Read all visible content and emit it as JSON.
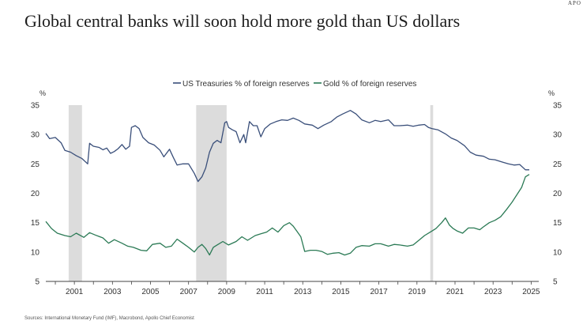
{
  "header": {
    "title": "Global central banks will soon hold more gold than US dollars",
    "brand": "APO"
  },
  "footer": {
    "source": "Sources: International Monetary Fund (IMF), Macrobond, Apollo Chief Economist"
  },
  "colors": {
    "treasuries": "#3a4f7a",
    "gold": "#2b7a55",
    "shading": "#dcdcdc",
    "axis": "#444444"
  },
  "chart_data": {
    "type": "line",
    "title": "Global central banks will soon hold more gold than US dollars",
    "left_axis_label": "%",
    "right_axis_label": "%",
    "ylim": [
      5,
      35
    ],
    "y_ticks": [
      "35",
      "30",
      "25",
      "20",
      "15",
      "10",
      "5"
    ],
    "x_range": [
      2000.0,
      2025.9
    ],
    "x_ticks": [
      "2001",
      "2003",
      "2005",
      "2007",
      "2009",
      "2011",
      "2013",
      "2015",
      "2017",
      "2019",
      "2021",
      "2023",
      "2025"
    ],
    "legend": [
      "US Treasuries % of foreign reserves",
      "Gold % of foreign reserves"
    ],
    "legend_position": "top-center",
    "recession_shading": [
      [
        2001.2,
        2001.9
      ],
      [
        2007.9,
        2009.5
      ],
      [
        2020.2,
        2020.35
      ]
    ],
    "series": [
      {
        "name": "US Treasuries % of foreign reserves",
        "x": [
          2000.0,
          2000.2,
          2000.5,
          2000.8,
          2001.0,
          2001.3,
          2001.6,
          2001.9,
          2002.2,
          2002.3,
          2002.5,
          2002.8,
          2003.0,
          2003.2,
          2003.4,
          2003.6,
          2003.8,
          2004.0,
          2004.2,
          2004.4,
          2004.5,
          2004.7,
          2004.9,
          2005.1,
          2005.4,
          2005.7,
          2006.0,
          2006.2,
          2006.5,
          2006.7,
          2006.9,
          2007.2,
          2007.5,
          2007.8,
          2008.0,
          2008.2,
          2008.4,
          2008.6,
          2008.8,
          2009.0,
          2009.2,
          2009.4,
          2009.5,
          2009.6,
          2009.8,
          2010.0,
          2010.2,
          2010.4,
          2010.5,
          2010.7,
          2010.9,
          2011.1,
          2011.3,
          2011.5,
          2011.8,
          2012.1,
          2012.4,
          2012.7,
          2013.0,
          2013.3,
          2013.6,
          2014.0,
          2014.3,
          2014.6,
          2015.0,
          2015.3,
          2015.6,
          2016.0,
          2016.3,
          2016.6,
          2017.0,
          2017.3,
          2017.6,
          2018.0,
          2018.3,
          2018.6,
          2019.0,
          2019.3,
          2019.6,
          2019.9,
          2020.1,
          2020.3,
          2020.6,
          2021.0,
          2021.3,
          2021.6,
          2022.0,
          2022.3,
          2022.6,
          2023.0,
          2023.3,
          2023.6,
          2024.0,
          2024.3,
          2024.6,
          2024.9,
          2025.2,
          2025.4
        ],
        "values": [
          30.2,
          29.3,
          29.5,
          28.6,
          27.3,
          27.0,
          26.4,
          25.9,
          25.0,
          28.5,
          28.0,
          27.8,
          27.4,
          27.7,
          26.8,
          27.1,
          27.6,
          28.3,
          27.5,
          28.0,
          31.2,
          31.5,
          31.0,
          29.5,
          28.6,
          28.2,
          27.3,
          26.2,
          27.5,
          26.1,
          24.8,
          25.0,
          25.0,
          23.4,
          22.0,
          22.8,
          24.3,
          27.0,
          28.5,
          29.0,
          28.6,
          32.0,
          32.2,
          31.2,
          30.8,
          30.5,
          28.6,
          30.0,
          28.6,
          32.2,
          31.5,
          31.5,
          29.6,
          31.0,
          31.8,
          32.2,
          32.5,
          32.4,
          32.8,
          32.4,
          31.8,
          31.6,
          31.0,
          31.6,
          32.2,
          33.0,
          33.5,
          34.1,
          33.5,
          32.5,
          32.0,
          32.4,
          32.2,
          32.5,
          31.5,
          31.5,
          31.6,
          31.4,
          31.6,
          31.7,
          31.2,
          31.0,
          30.8,
          30.1,
          29.4,
          29.0,
          28.1,
          27.0,
          26.5,
          26.3,
          25.8,
          25.7,
          25.3,
          25.0,
          24.8,
          24.9,
          24.0,
          24.0
        ]
      },
      {
        "name": "Gold % of foreign reserves",
        "x": [
          2000.0,
          2000.3,
          2000.6,
          2001.0,
          2001.3,
          2001.6,
          2002.0,
          2002.3,
          2002.6,
          2003.0,
          2003.3,
          2003.6,
          2004.0,
          2004.3,
          2004.6,
          2005.0,
          2005.3,
          2005.6,
          2006.0,
          2006.3,
          2006.6,
          2006.9,
          2007.2,
          2007.5,
          2007.8,
          2008.0,
          2008.2,
          2008.4,
          2008.6,
          2008.8,
          2009.0,
          2009.3,
          2009.6,
          2010.0,
          2010.3,
          2010.6,
          2011.0,
          2011.3,
          2011.6,
          2011.9,
          2012.2,
          2012.5,
          2012.8,
          2013.0,
          2013.2,
          2013.4,
          2013.6,
          2013.9,
          2014.2,
          2014.5,
          2014.8,
          2015.1,
          2015.4,
          2015.7,
          2016.0,
          2016.3,
          2016.6,
          2017.0,
          2017.3,
          2017.6,
          2018.0,
          2018.3,
          2018.6,
          2019.0,
          2019.3,
          2019.6,
          2019.9,
          2020.2,
          2020.5,
          2020.8,
          2021.0,
          2021.2,
          2021.4,
          2021.6,
          2021.9,
          2022.2,
          2022.5,
          2022.8,
          2023.0,
          2023.3,
          2023.6,
          2023.9,
          2024.2,
          2024.5,
          2024.8,
          2025.0,
          2025.2,
          2025.4
        ],
        "values": [
          15.2,
          14.0,
          13.2,
          12.8,
          12.6,
          13.2,
          12.5,
          13.3,
          12.9,
          12.4,
          11.5,
          12.1,
          11.5,
          11.0,
          10.8,
          10.3,
          10.2,
          11.3,
          11.5,
          10.8,
          11.0,
          12.2,
          11.5,
          10.8,
          10.0,
          10.8,
          11.3,
          10.6,
          9.5,
          10.8,
          11.2,
          11.8,
          11.2,
          11.8,
          12.6,
          12.0,
          12.8,
          13.1,
          13.4,
          14.1,
          13.4,
          14.5,
          15.0,
          14.4,
          13.5,
          12.6,
          10.1,
          10.3,
          10.3,
          10.1,
          9.6,
          9.8,
          9.9,
          9.5,
          9.8,
          10.8,
          11.1,
          11.0,
          11.4,
          11.4,
          11.0,
          11.3,
          11.2,
          11.0,
          11.2,
          12.0,
          12.8,
          13.4,
          14.0,
          15.0,
          15.8,
          14.6,
          14.0,
          13.6,
          13.2,
          14.1,
          14.1,
          13.8,
          14.3,
          15.0,
          15.4,
          16.0,
          17.2,
          18.5,
          20.0,
          21.0,
          22.8,
          23.2
        ]
      }
    ]
  }
}
